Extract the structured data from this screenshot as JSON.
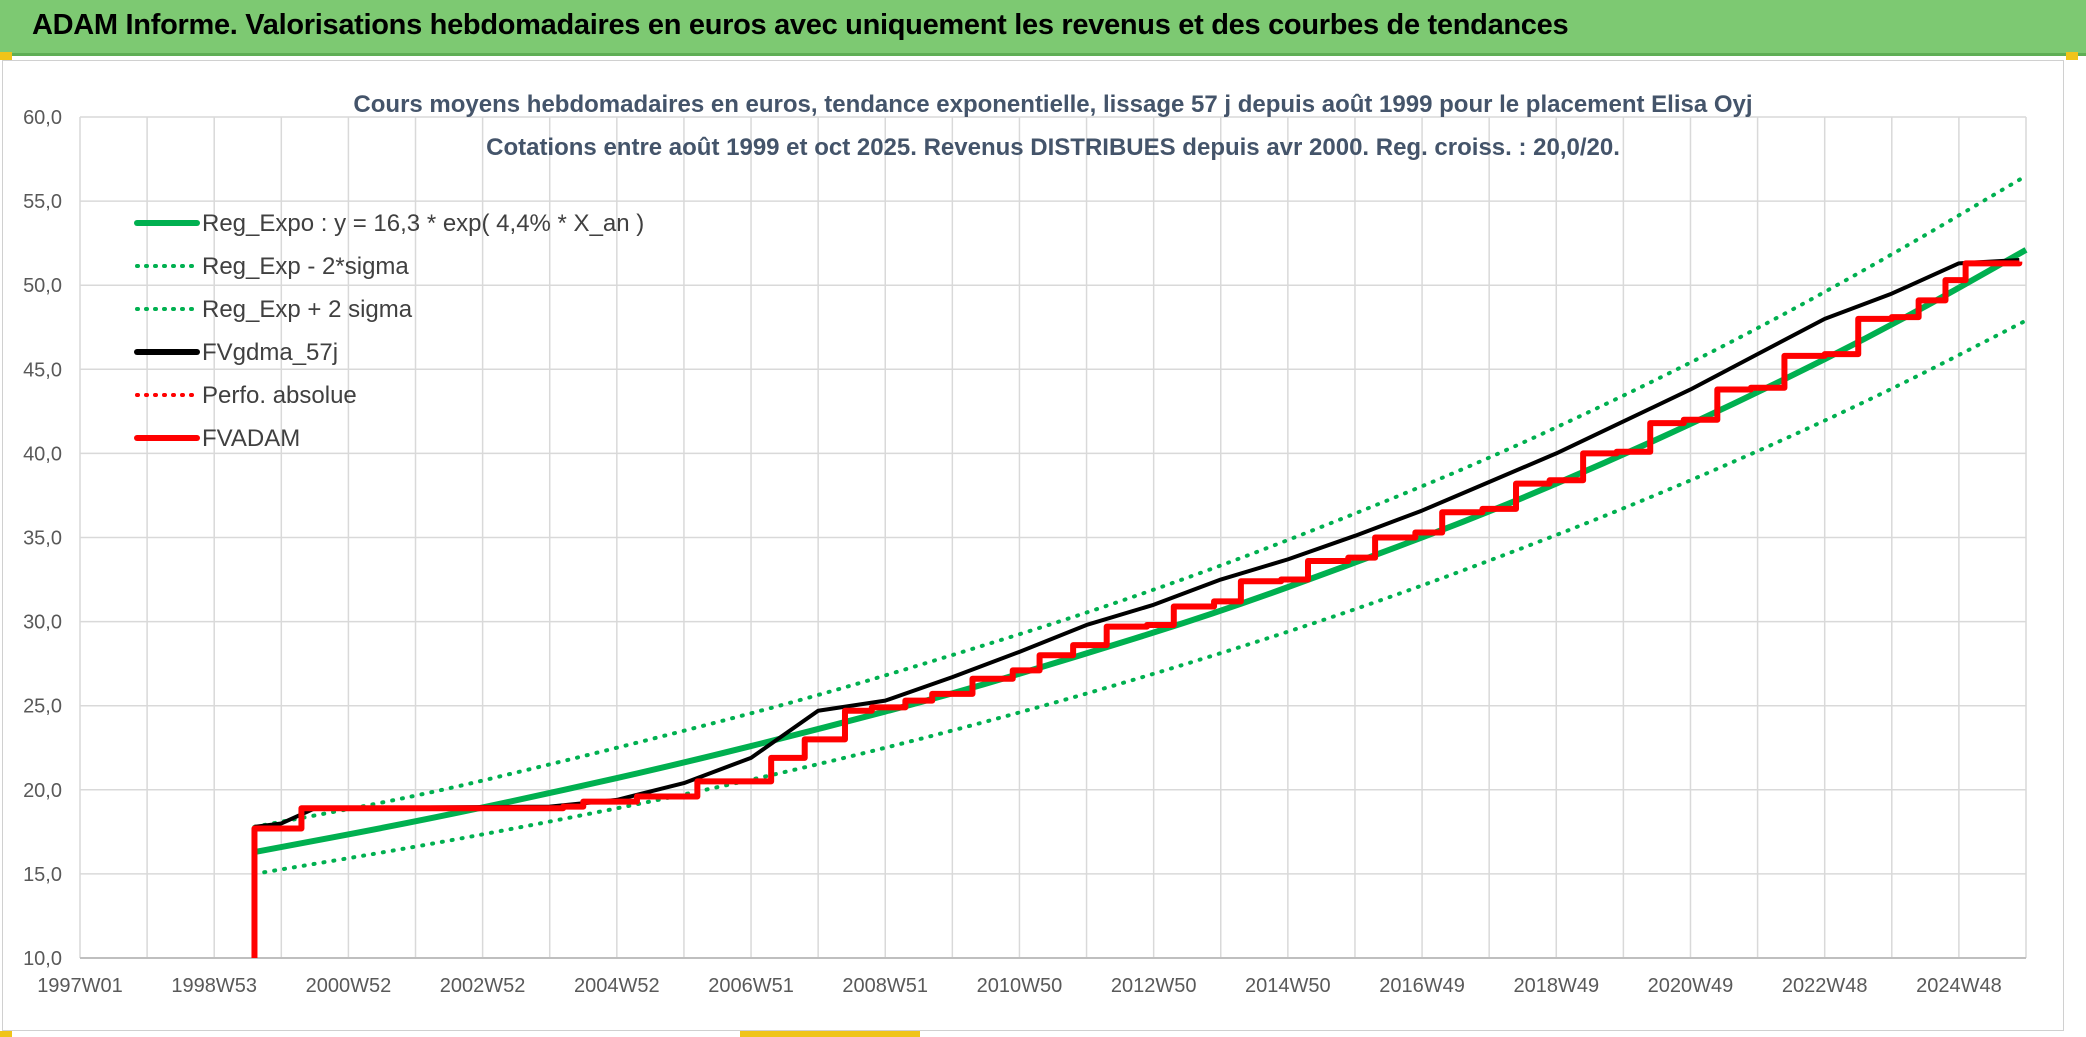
{
  "header": {
    "title": "ADAM Informe. Valorisations hebdomadaires en euros avec uniquement les revenus et des courbes de tendances"
  },
  "colors": {
    "header_bg": "#7dc972",
    "accent": "#f0c419",
    "green": "#00b050",
    "red": "#ff0000",
    "black": "#000000",
    "grid": "#d9d9d9",
    "title": "#44546a"
  },
  "chart_data": {
    "type": "line",
    "title": "Cours moyens hebdomadaires en euros, tendance exponentielle, lissage 57 j depuis août 1999 pour le placement Elisa Oyj",
    "subtitle": "Cotations entre août 1999 et oct 2025. Revenus DISTRIBUES depuis avr 2000. Reg. croiss. : 20,0/20.",
    "xlabel": "",
    "ylabel": "",
    "ylim": [
      10,
      60
    ],
    "xlim": [
      1997.0,
      2026.0
    ],
    "y_ticks": [
      "10,0",
      "15,0",
      "20,0",
      "25,0",
      "30,0",
      "35,0",
      "40,0",
      "45,0",
      "50,0",
      "55,0",
      "60,0"
    ],
    "x_tick_labels": [
      "1997W01",
      "1998W53",
      "2000W52",
      "2002W52",
      "2004W52",
      "2006W51",
      "2008W51",
      "2010W50",
      "2012W50",
      "2014W50",
      "2016W49",
      "2018W49",
      "2020W49",
      "2022W48",
      "2024W48"
    ],
    "grid": true,
    "legend_position": "top-left",
    "series": [
      {
        "name": "Reg_Expo : y = 16,3 * exp( 4,4% *  X_an )",
        "color": "#00b050",
        "style": "solid",
        "width": 6,
        "x": [
          1999.6,
          2002.0,
          2004.0,
          2006.0,
          2008.0,
          2010.0,
          2012.0,
          2014.0,
          2016.0,
          2018.0,
          2020.0,
          2022.0,
          2024.0,
          2026.0
        ],
        "values": [
          16.3,
          18.1,
          19.8,
          21.6,
          23.6,
          25.7,
          28.1,
          30.6,
          33.5,
          36.5,
          39.9,
          43.6,
          47.6,
          52.1
        ]
      },
      {
        "name": "Reg_Exp - 2*sigma",
        "color": "#00b050",
        "style": "dotted",
        "width": 4,
        "x": [
          1999.6,
          2002.0,
          2004.0,
          2006.0,
          2008.0,
          2010.0,
          2012.0,
          2014.0,
          2016.0,
          2018.0,
          2020.0,
          2022.0,
          2024.0,
          2026.0
        ],
        "values": [
          15.0,
          16.6,
          18.1,
          19.7,
          21.5,
          23.5,
          25.7,
          28.1,
          30.7,
          33.6,
          36.7,
          40.1,
          43.8,
          47.9
        ]
      },
      {
        "name": "Reg_Exp + 2 sigma",
        "color": "#00b050",
        "style": "dotted",
        "width": 4,
        "x": [
          1999.6,
          2002.0,
          2004.0,
          2006.0,
          2008.0,
          2010.0,
          2012.0,
          2014.0,
          2016.0,
          2018.0,
          2020.0,
          2022.0,
          2024.0,
          2026.0
        ],
        "values": [
          17.8,
          19.6,
          21.5,
          23.5,
          25.6,
          28.0,
          30.5,
          33.3,
          36.4,
          39.7,
          43.4,
          47.4,
          51.8,
          56.5
        ]
      },
      {
        "name": "FVgdma_57j",
        "color": "#000000",
        "style": "solid",
        "width": 4,
        "x": [
          1999.6,
          2000.0,
          2000.5,
          2004.0,
          2005.0,
          2006.0,
          2007.0,
          2008.0,
          2009.0,
          2010.0,
          2011.0,
          2012.0,
          2013.0,
          2014.0,
          2015.0,
          2016.0,
          2017.0,
          2018.0,
          2019.0,
          2020.0,
          2021.0,
          2022.0,
          2023.0,
          2024.0,
          2025.0,
          2025.9
        ],
        "values": [
          17.8,
          18.0,
          18.9,
          19.0,
          19.4,
          20.4,
          21.9,
          24.7,
          25.3,
          26.7,
          28.2,
          29.8,
          31.0,
          32.5,
          33.7,
          35.1,
          36.6,
          38.3,
          40.0,
          41.9,
          43.8,
          45.9,
          48.0,
          49.5,
          51.3,
          51.5
        ]
      },
      {
        "name": "Perfo. absolue",
        "color": "#ff0000",
        "style": "dotted",
        "width": 3,
        "x": [],
        "values": []
      },
      {
        "name": "FVADAM",
        "color": "#ff0000",
        "style": "step",
        "width": 6,
        "x": [
          1999.6,
          1999.6,
          2000.3,
          2004.2,
          2004.5,
          2005.3,
          2006.2,
          2006.9,
          2007.3,
          2007.8,
          2008.4,
          2008.8,
          2009.3,
          2009.7,
          2010.3,
          2010.9,
          2011.3,
          2011.8,
          2012.3,
          2012.9,
          2013.3,
          2013.9,
          2014.3,
          2014.9,
          2015.3,
          2015.9,
          2016.3,
          2016.9,
          2017.3,
          2017.9,
          2018.4,
          2018.9,
          2019.4,
          2019.9,
          2020.4,
          2020.9,
          2021.4,
          2021.9,
          2022.4,
          2023.0,
          2023.5,
          2024.0,
          2024.4,
          2024.8,
          2025.1,
          2025.9
        ],
        "values": [
          10.0,
          17.7,
          18.9,
          19.0,
          19.3,
          19.6,
          20.5,
          20.5,
          21.9,
          23.0,
          24.7,
          24.9,
          25.3,
          25.7,
          26.6,
          27.1,
          28.0,
          28.6,
          29.7,
          29.8,
          30.9,
          31.2,
          32.4,
          32.5,
          33.6,
          33.8,
          35.0,
          35.3,
          36.5,
          36.7,
          38.2,
          38.4,
          40.0,
          40.1,
          41.8,
          42.0,
          43.8,
          43.9,
          45.8,
          45.9,
          48.0,
          48.1,
          49.1,
          50.3,
          51.3,
          51.4
        ]
      }
    ]
  }
}
